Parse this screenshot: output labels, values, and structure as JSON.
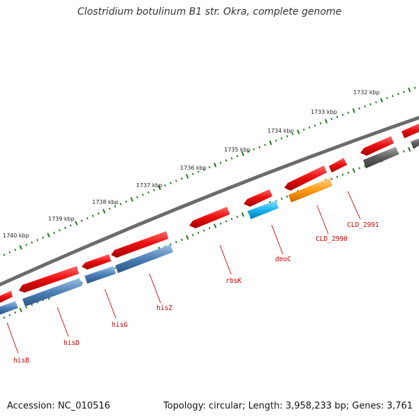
{
  "title": "Clostridium botulinum B1 str. Okra, complete genome",
  "footer": {
    "accession": "Accession: NC_010516",
    "summary": "Topology: circular; Length: 3,958,233 bp; Genes: 3,761"
  },
  "scale_labels": [
    "1740 kbp",
    "1739 kbp",
    "1738 kbp",
    "1737 kbp",
    "1736 kbp",
    "1735 kbp",
    "1734 kbp",
    "1733 kbp",
    "1732 kbp"
  ],
  "gene_labels": [
    "hisB",
    "hisD",
    "hisG",
    "hisZ",
    "rbsK",
    "deoC",
    "CLD_2990",
    "CLD_2991"
  ],
  "colors": {
    "backbone": "#777777",
    "cds_forward": "#ee1111",
    "cds_reverse_blue": "#4c7fb5",
    "cyan_feature": "#1ab4ee",
    "orange_feature": "#ff9a0f",
    "gray_feature": "#5e5e5e",
    "tick": "#1a7a1a",
    "gene_label": "#cc0000"
  }
}
